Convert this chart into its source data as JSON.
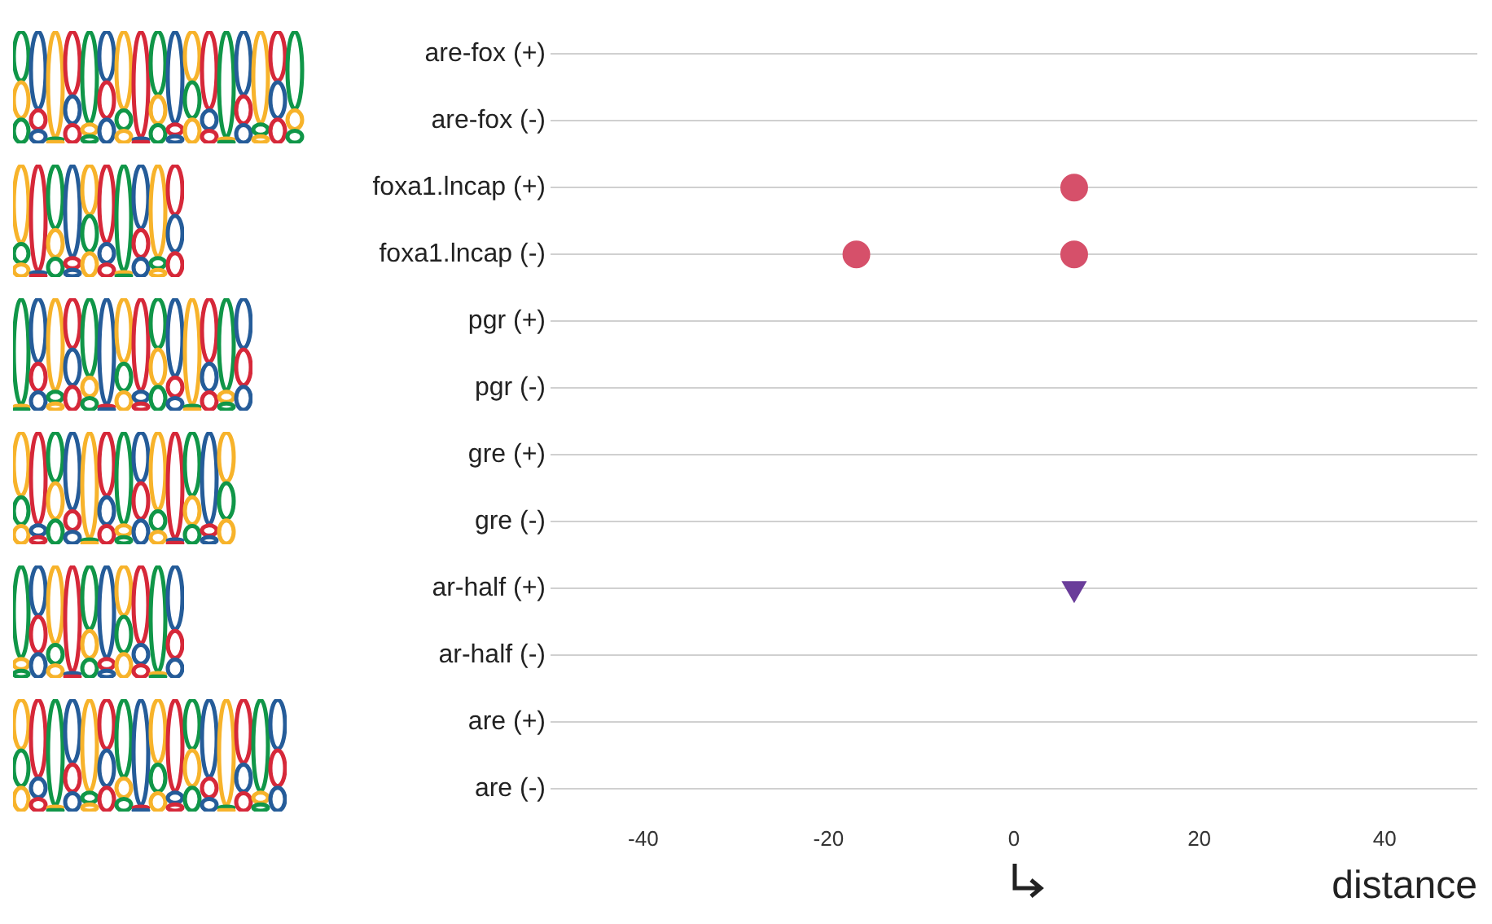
{
  "chart_data": {
    "type": "scatter",
    "xlabel": "distance",
    "categories": [
      "are-fox (+)",
      "are-fox (-)",
      "foxa1.lncap (+)",
      "foxa1.lncap (-)",
      "pgr (+)",
      "pgr (-)",
      "gre (+)",
      "gre (-)",
      "ar-half (+)",
      "ar-half (-)",
      "are (+)",
      "are (-)"
    ],
    "series": [
      {
        "type": "scatter",
        "marker": "circle",
        "color": "#d6506a",
        "x": [
          "foxa1.lncap (+)",
          "foxa1.lncap (-)",
          "foxa1.lncap (-)"
        ],
        "values": [
          6.5,
          -17,
          6.5
        ]
      },
      {
        "type": "scatter",
        "marker": "triangle",
        "color": "#6a3d9a",
        "x": [
          "ar-half (+)"
        ],
        "values": [
          6.5
        ]
      }
    ],
    "orientation": "horizontal",
    "xlim": [
      -50,
      50
    ],
    "xticks": [
      -40,
      -20,
      0,
      20,
      40
    ],
    "grid": "y",
    "legend": false
  }
}
